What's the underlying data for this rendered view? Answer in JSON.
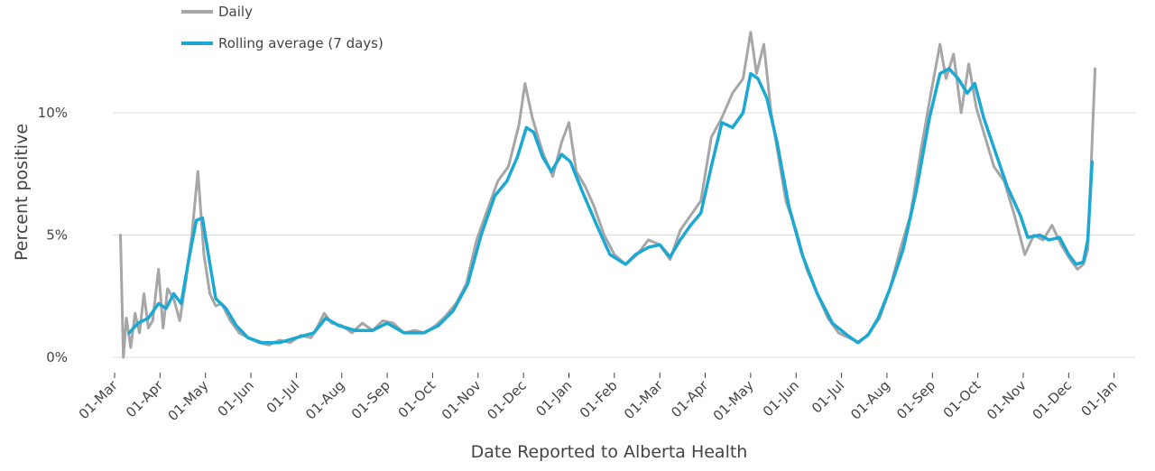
{
  "chart_data": {
    "type": "line",
    "xlabel": "Date Reported to Alberta Health",
    "ylabel": "Percent positive",
    "x_ticks": [
      "01-Mar",
      "01-Apr",
      "01-May",
      "01-Jun",
      "01-Jul",
      "01-Aug",
      "01-Sep",
      "01-Oct",
      "01-Nov",
      "01-Dec",
      "01-Jan",
      "01-Feb",
      "01-Mar",
      "01-Apr",
      "01-May",
      "01-Jun",
      "01-Jul",
      "01-Aug",
      "01-Sep",
      "01-Oct",
      "01-Nov",
      "01-Dec",
      "01-Jan"
    ],
    "y_ticks": [
      "0%",
      "5%",
      "10%"
    ],
    "ylim": [
      0,
      13.3
    ],
    "grid": true,
    "legend_position": "top-left",
    "series": [
      {
        "name": "Daily",
        "color": "#a6a6a6",
        "points": [
          [
            "2020-03-05",
            5.0
          ],
          [
            "2020-03-07",
            0.0
          ],
          [
            "2020-03-09",
            1.6
          ],
          [
            "2020-03-12",
            0.4
          ],
          [
            "2020-03-15",
            1.8
          ],
          [
            "2020-03-18",
            1.0
          ],
          [
            "2020-03-21",
            2.6
          ],
          [
            "2020-03-24",
            1.2
          ],
          [
            "2020-03-27",
            1.5
          ],
          [
            "2020-03-31",
            3.6
          ],
          [
            "2020-04-03",
            1.2
          ],
          [
            "2020-04-06",
            2.8
          ],
          [
            "2020-04-10",
            2.4
          ],
          [
            "2020-04-14",
            1.5
          ],
          [
            "2020-04-18",
            3.1
          ],
          [
            "2020-04-22",
            5.0
          ],
          [
            "2020-04-26",
            7.6
          ],
          [
            "2020-04-30",
            4.2
          ],
          [
            "2020-05-04",
            2.6
          ],
          [
            "2020-05-08",
            2.1
          ],
          [
            "2020-05-12",
            2.2
          ],
          [
            "2020-05-18",
            1.5
          ],
          [
            "2020-05-24",
            1.0
          ],
          [
            "2020-05-30",
            0.8
          ],
          [
            "2020-06-06",
            0.6
          ],
          [
            "2020-06-13",
            0.5
          ],
          [
            "2020-06-20",
            0.7
          ],
          [
            "2020-06-27",
            0.6
          ],
          [
            "2020-07-04",
            0.9
          ],
          [
            "2020-07-11",
            0.8
          ],
          [
            "2020-07-15",
            1.2
          ],
          [
            "2020-07-20",
            1.8
          ],
          [
            "2020-07-25",
            1.4
          ],
          [
            "2020-08-01",
            1.3
          ],
          [
            "2020-08-08",
            1.0
          ],
          [
            "2020-08-15",
            1.4
          ],
          [
            "2020-08-22",
            1.1
          ],
          [
            "2020-08-29",
            1.5
          ],
          [
            "2020-09-05",
            1.4
          ],
          [
            "2020-09-12",
            1.0
          ],
          [
            "2020-09-19",
            1.1
          ],
          [
            "2020-09-26",
            1.0
          ],
          [
            "2020-10-03",
            1.3
          ],
          [
            "2020-10-10",
            1.7
          ],
          [
            "2020-10-17",
            2.2
          ],
          [
            "2020-10-24",
            3.0
          ],
          [
            "2020-10-31",
            4.8
          ],
          [
            "2020-11-07",
            6.0
          ],
          [
            "2020-11-14",
            7.2
          ],
          [
            "2020-11-21",
            7.8
          ],
          [
            "2020-11-28",
            9.5
          ],
          [
            "2020-12-02",
            11.2
          ],
          [
            "2020-12-07",
            9.8
          ],
          [
            "2020-12-14",
            8.4
          ],
          [
            "2020-12-21",
            7.4
          ],
          [
            "2020-12-27",
            8.8
          ],
          [
            "2021-01-01",
            9.6
          ],
          [
            "2021-01-06",
            7.6
          ],
          [
            "2021-01-12",
            7.0
          ],
          [
            "2021-01-18",
            6.2
          ],
          [
            "2021-01-25",
            5.0
          ],
          [
            "2021-02-01",
            4.2
          ],
          [
            "2021-02-08",
            3.8
          ],
          [
            "2021-02-15",
            4.2
          ],
          [
            "2021-02-22",
            4.8
          ],
          [
            "2021-03-01",
            4.6
          ],
          [
            "2021-03-08",
            4.0
          ],
          [
            "2021-03-15",
            5.2
          ],
          [
            "2021-03-22",
            5.8
          ],
          [
            "2021-03-29",
            6.4
          ],
          [
            "2021-04-05",
            9.0
          ],
          [
            "2021-04-12",
            9.8
          ],
          [
            "2021-04-19",
            10.8
          ],
          [
            "2021-04-26",
            11.4
          ],
          [
            "2021-05-01",
            13.3
          ],
          [
            "2021-05-05",
            11.6
          ],
          [
            "2021-05-10",
            12.8
          ],
          [
            "2021-05-15",
            10.0
          ],
          [
            "2021-05-20",
            8.2
          ],
          [
            "2021-05-25",
            6.4
          ],
          [
            "2021-06-01",
            5.2
          ],
          [
            "2021-06-08",
            3.6
          ],
          [
            "2021-06-15",
            2.6
          ],
          [
            "2021-06-22",
            1.6
          ],
          [
            "2021-06-29",
            1.0
          ],
          [
            "2021-07-06",
            0.8
          ],
          [
            "2021-07-13",
            0.6
          ],
          [
            "2021-07-20",
            1.0
          ],
          [
            "2021-07-27",
            1.6
          ],
          [
            "2021-08-03",
            2.8
          ],
          [
            "2021-08-10",
            4.4
          ],
          [
            "2021-08-17",
            5.8
          ],
          [
            "2021-08-24",
            8.4
          ],
          [
            "2021-08-31",
            10.8
          ],
          [
            "2021-09-06",
            12.8
          ],
          [
            "2021-09-10",
            11.4
          ],
          [
            "2021-09-15",
            12.4
          ],
          [
            "2021-09-20",
            10.0
          ],
          [
            "2021-09-25",
            12.0
          ],
          [
            "2021-09-30",
            10.2
          ],
          [
            "2021-10-06",
            9.0
          ],
          [
            "2021-10-12",
            7.8
          ],
          [
            "2021-10-19",
            7.2
          ],
          [
            "2021-10-26",
            5.8
          ],
          [
            "2021-11-02",
            4.2
          ],
          [
            "2021-11-08",
            5.0
          ],
          [
            "2021-11-14",
            4.8
          ],
          [
            "2021-11-20",
            5.4
          ],
          [
            "2021-11-26",
            4.6
          ],
          [
            "2021-12-02",
            4.0
          ],
          [
            "2021-12-07",
            3.6
          ],
          [
            "2021-12-11",
            3.8
          ],
          [
            "2021-12-14",
            4.4
          ],
          [
            "2021-12-17",
            8.8
          ],
          [
            "2021-12-19",
            11.8
          ]
        ]
      },
      {
        "name": "Rolling average (7 days)",
        "color": "#1ba8d3",
        "points": [
          [
            "2020-03-11",
            1.0
          ],
          [
            "2020-03-17",
            1.4
          ],
          [
            "2020-03-24",
            1.6
          ],
          [
            "2020-03-31",
            2.2
          ],
          [
            "2020-04-05",
            2.0
          ],
          [
            "2020-04-10",
            2.6
          ],
          [
            "2020-04-15",
            2.2
          ],
          [
            "2020-04-20",
            4.0
          ],
          [
            "2020-04-25",
            5.6
          ],
          [
            "2020-04-29",
            5.7
          ],
          [
            "2020-05-03",
            4.2
          ],
          [
            "2020-05-08",
            2.4
          ],
          [
            "2020-05-15",
            2.0
          ],
          [
            "2020-05-22",
            1.3
          ],
          [
            "2020-05-30",
            0.8
          ],
          [
            "2020-06-08",
            0.6
          ],
          [
            "2020-06-20",
            0.6
          ],
          [
            "2020-07-01",
            0.8
          ],
          [
            "2020-07-13",
            1.0
          ],
          [
            "2020-07-21",
            1.6
          ],
          [
            "2020-07-30",
            1.3
          ],
          [
            "2020-08-10",
            1.1
          ],
          [
            "2020-08-22",
            1.1
          ],
          [
            "2020-09-01",
            1.4
          ],
          [
            "2020-09-12",
            1.0
          ],
          [
            "2020-09-25",
            1.0
          ],
          [
            "2020-10-05",
            1.3
          ],
          [
            "2020-10-15",
            1.9
          ],
          [
            "2020-10-25",
            3.0
          ],
          [
            "2020-11-03",
            5.0
          ],
          [
            "2020-11-12",
            6.6
          ],
          [
            "2020-11-20",
            7.2
          ],
          [
            "2020-11-27",
            8.2
          ],
          [
            "2020-12-03",
            9.4
          ],
          [
            "2020-12-08",
            9.2
          ],
          [
            "2020-12-14",
            8.2
          ],
          [
            "2020-12-20",
            7.6
          ],
          [
            "2020-12-27",
            8.3
          ],
          [
            "2021-01-02",
            8.0
          ],
          [
            "2021-01-10",
            6.8
          ],
          [
            "2021-01-20",
            5.4
          ],
          [
            "2021-01-29",
            4.2
          ],
          [
            "2021-02-08",
            3.8
          ],
          [
            "2021-02-14",
            4.2
          ],
          [
            "2021-02-22",
            4.5
          ],
          [
            "2021-03-01",
            4.6
          ],
          [
            "2021-03-08",
            4.1
          ],
          [
            "2021-03-15",
            4.8
          ],
          [
            "2021-03-22",
            5.4
          ],
          [
            "2021-03-29",
            5.9
          ],
          [
            "2021-04-05",
            7.8
          ],
          [
            "2021-04-12",
            9.6
          ],
          [
            "2021-04-19",
            9.4
          ],
          [
            "2021-04-26",
            10.0
          ],
          [
            "2021-05-01",
            11.6
          ],
          [
            "2021-05-06",
            11.4
          ],
          [
            "2021-05-12",
            10.6
          ],
          [
            "2021-05-19",
            8.8
          ],
          [
            "2021-05-27",
            6.2
          ],
          [
            "2021-06-05",
            4.2
          ],
          [
            "2021-06-15",
            2.6
          ],
          [
            "2021-06-25",
            1.4
          ],
          [
            "2021-07-05",
            0.9
          ],
          [
            "2021-07-12",
            0.6
          ],
          [
            "2021-07-19",
            0.9
          ],
          [
            "2021-07-26",
            1.6
          ],
          [
            "2021-08-03",
            2.8
          ],
          [
            "2021-08-12",
            4.4
          ],
          [
            "2021-08-21",
            6.8
          ],
          [
            "2021-08-30",
            9.8
          ],
          [
            "2021-09-06",
            11.6
          ],
          [
            "2021-09-12",
            11.8
          ],
          [
            "2021-09-18",
            11.4
          ],
          [
            "2021-09-24",
            10.8
          ],
          [
            "2021-09-29",
            11.2
          ],
          [
            "2021-10-05",
            9.8
          ],
          [
            "2021-10-13",
            8.4
          ],
          [
            "2021-10-21",
            7.0
          ],
          [
            "2021-10-30",
            5.8
          ],
          [
            "2021-11-04",
            4.9
          ],
          [
            "2021-11-12",
            5.0
          ],
          [
            "2021-11-18",
            4.8
          ],
          [
            "2021-11-25",
            4.9
          ],
          [
            "2021-12-01",
            4.2
          ],
          [
            "2021-12-06",
            3.8
          ],
          [
            "2021-12-11",
            3.9
          ],
          [
            "2021-12-14",
            4.8
          ],
          [
            "2021-12-17",
            8.0
          ]
        ]
      }
    ]
  }
}
